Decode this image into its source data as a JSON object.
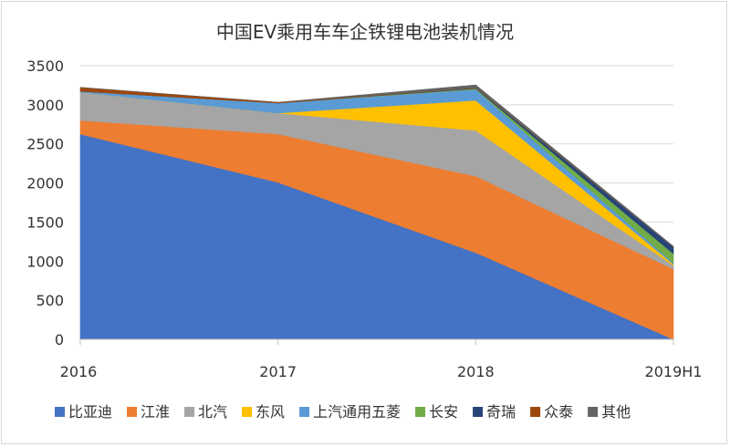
{
  "chart_data": {
    "type": "area",
    "stacked": true,
    "title": "中国EV乘用车车企铁锂电池装机情况",
    "xlabel": "",
    "ylabel": "",
    "categories": [
      "2016",
      "2017",
      "2018",
      "2019H1"
    ],
    "ylim": [
      0,
      3500
    ],
    "yticks": [
      "0",
      "500",
      "1000",
      "1500",
      "2000",
      "2500",
      "3000",
      "3500"
    ],
    "grid": true,
    "legend_position": "bottom",
    "series": [
      {
        "name": "比亚迪",
        "color": "#4472C4",
        "values": [
          2625,
          2007,
          1108,
          0
        ]
      },
      {
        "name": "江淮",
        "color": "#ED7D31",
        "values": [
          175,
          618,
          980,
          898
        ]
      },
      {
        "name": "北汽",
        "color": "#A5A5A5",
        "values": [
          362,
          269,
          584,
          47
        ]
      },
      {
        "name": "东风",
        "color": "#FFC000",
        "values": [
          0,
          0,
          385,
          15
        ]
      },
      {
        "name": "上汽通用五菱",
        "color": "#5B9BD5",
        "values": [
          10,
          128,
          140,
          15
        ]
      },
      {
        "name": "长安",
        "color": "#70AD47",
        "values": [
          0,
          0,
          10,
          120
        ]
      },
      {
        "name": "奇瑞",
        "color": "#264478",
        "values": [
          0,
          0,
          5,
          85
        ]
      },
      {
        "name": "众泰",
        "color": "#9E480E",
        "values": [
          50,
          10,
          5,
          0
        ]
      },
      {
        "name": "其他",
        "color": "#636363",
        "values": [
          0,
          0,
          37,
          10
        ]
      }
    ]
  }
}
